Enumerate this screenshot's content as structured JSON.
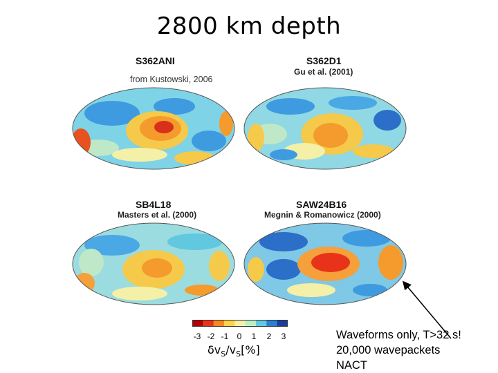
{
  "slide": {
    "title": "2800 km depth",
    "credit": "from Kustowski, 2006"
  },
  "models": [
    {
      "name": "S362ANI",
      "ref": ""
    },
    {
      "name": "S362D1",
      "ref": "Gu et al. (2001)"
    },
    {
      "name": "SB4L18",
      "ref": "Masters et al. (2000)"
    },
    {
      "name": "SAW24B16",
      "ref": "Megnin & Romanowicz (2000)"
    }
  ],
  "colorbar": {
    "ticks": [
      "-3",
      "-2",
      "-1",
      "0",
      "1",
      "2",
      "3"
    ],
    "label_main": "δv",
    "label_sub1": "S",
    "label_mid": "/v",
    "label_sub2": "S",
    "label_unit": "[%]",
    "colors": [
      "#b40000",
      "#e8321a",
      "#f5891e",
      "#ffd24a",
      "#f4f0a8",
      "#b8f0c8",
      "#62c8e0",
      "#2b7fd0",
      "#1a3c9c"
    ]
  },
  "note": {
    "line1": "Waveforms only, T>32 s!",
    "line2": "20,000 wavepackets",
    "line3": "NACT"
  }
}
